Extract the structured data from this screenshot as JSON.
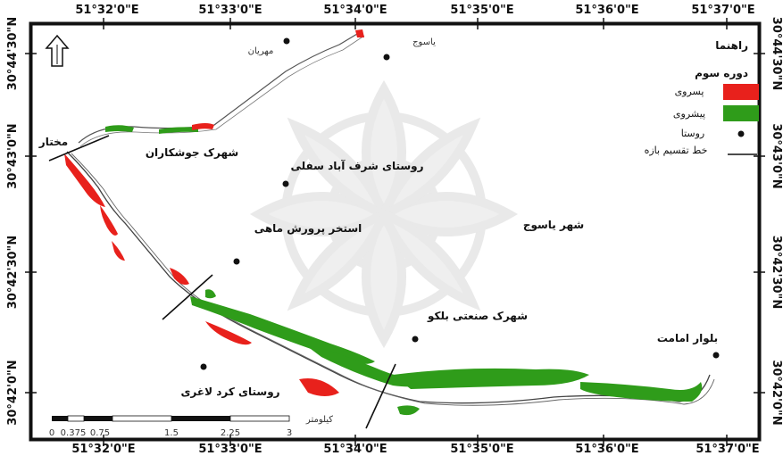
{
  "map": {
    "top_coords": [
      "51°32'0\"E",
      "51°33'0\"E",
      "51°34'0\"E",
      "51°35'0\"E",
      "51°36'0\"E",
      "51°37'0\"E"
    ],
    "bottom_coords": [
      "51°32'0\"E",
      "51°33'0\"E",
      "51°34'0\"E",
      "51°35'0\"E",
      "51°36'0\"E",
      "51°37'0\"E"
    ],
    "left_coords": [
      "30°44'30\"N",
      "30°43'0\"N",
      "30°42'30\"N",
      "30°42'0\"N"
    ],
    "right_coords": [
      "30°44'30\"N",
      "30°43'0\"N",
      "30°42'30\"N",
      "30°42'0\"N"
    ],
    "places": {
      "mehriyan": "مهریان",
      "yasuj_village": "یاسوج",
      "shahrak_joshkaran": "شهرک جوشکاران",
      "sharafabad_sofla": "روستای شرف آباد سفلی",
      "estakhr_mahi": "استخر پرورش ماهی",
      "shahr_yasuj": "شهر یاسوج",
      "shahrak_sanati": "شهرک صنعتی بلکو",
      "kord_laghari": "روستای کرد لاغری",
      "bolvar_emamat": "بلوار امامت",
      "mokhtar": "مختار"
    },
    "legend": {
      "title": "راهنما",
      "period": "دوره سوم",
      "items": [
        {
          "label": "پسروی",
          "color": "#e8211c"
        },
        {
          "label": "پیشروی",
          "color": "#2f9c1a"
        },
        {
          "label": "روستا",
          "symbol": "dot"
        },
        {
          "label": "خط تقسیم بازه",
          "symbol": "line"
        }
      ]
    },
    "scale": {
      "unit": "کیلومتر",
      "ticks": [
        "0",
        "0.375",
        "0.75",
        "1.5",
        "2.25",
        "3"
      ]
    },
    "north_arrow": "north-arrow-icon"
  }
}
